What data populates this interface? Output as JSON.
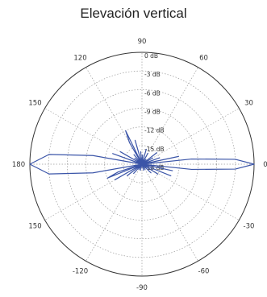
{
  "title": "Elevación vertical",
  "chart_data": {
    "type": "polar-line",
    "title": "Elevación vertical",
    "radial_unit": "dB",
    "radial_range": [
      -18,
      0
    ],
    "radial_ticks": [
      "0 dB",
      "-3 dB",
      "-6 dB",
      "-9 dB",
      "-12 dB",
      "-15 dB",
      "-18 dB"
    ],
    "radial_tick_values": [
      0,
      -3,
      -6,
      -9,
      -12,
      -15,
      -18
    ],
    "angle_ticks": [
      {
        "deg": 0,
        "label": "0"
      },
      {
        "deg": 30,
        "label": "30"
      },
      {
        "deg": 60,
        "label": "60"
      },
      {
        "deg": 90,
        "label": "90"
      },
      {
        "deg": 120,
        "label": "120"
      },
      {
        "deg": 150,
        "label": "150"
      },
      {
        "deg": 180,
        "label": "180"
      },
      {
        "deg": 210,
        "label": "150"
      },
      {
        "deg": 240,
        "label": "-120"
      },
      {
        "deg": 270,
        "label": "-90"
      },
      {
        "deg": 300,
        "label": "-60"
      },
      {
        "deg": 330,
        "label": "-30"
      }
    ],
    "grid": true,
    "line_color": "#3b55a8",
    "series": [
      {
        "points": [
          [
            -180,
            0
          ],
          [
            -174,
            -3
          ],
          [
            -170,
            -10
          ],
          [
            -166,
            -18
          ],
          [
            -162,
            -14
          ],
          [
            -158,
            -12
          ],
          [
            -155,
            -18
          ],
          [
            -150,
            -13
          ],
          [
            -146,
            -18
          ],
          [
            -142,
            -15
          ],
          [
            -138,
            -18
          ],
          [
            -132,
            -16
          ],
          [
            -126,
            -18
          ],
          [
            -120,
            -17
          ],
          [
            -112,
            -18
          ],
          [
            -104,
            -17
          ],
          [
            -96,
            -18
          ],
          [
            -90,
            -18
          ],
          [
            -84,
            -18
          ],
          [
            -76,
            -17
          ],
          [
            -68,
            -18
          ],
          [
            -60,
            -17
          ],
          [
            -52,
            -18
          ],
          [
            -44,
            -16
          ],
          [
            -38,
            -18
          ],
          [
            -32,
            -15
          ],
          [
            -26,
            -18
          ],
          [
            -22,
            -13
          ],
          [
            -16,
            -18
          ],
          [
            -12,
            -13
          ],
          [
            -8,
            -18
          ],
          [
            -6,
            -10
          ],
          [
            -3,
            -3
          ],
          [
            0,
            0
          ],
          [
            3,
            -3
          ],
          [
            6,
            -10
          ],
          [
            8,
            -18
          ],
          [
            12,
            -12
          ],
          [
            16,
            -18
          ],
          [
            20,
            -15
          ],
          [
            26,
            -18
          ],
          [
            30,
            -16
          ],
          [
            34,
            -18
          ],
          [
            38,
            -15
          ],
          [
            44,
            -18
          ],
          [
            50,
            -17
          ],
          [
            56,
            -18
          ],
          [
            62,
            -16
          ],
          [
            68,
            -18
          ],
          [
            74,
            -15.5
          ],
          [
            80,
            -18
          ],
          [
            86,
            -16.5
          ],
          [
            90,
            -18
          ],
          [
            96,
            -16
          ],
          [
            100,
            -18
          ],
          [
            106,
            -14
          ],
          [
            110,
            -18
          ],
          [
            116,
            -12
          ],
          [
            120,
            -14
          ],
          [
            124,
            -18
          ],
          [
            130,
            -16
          ],
          [
            134,
            -18
          ],
          [
            140,
            -16.5
          ],
          [
            146,
            -18
          ],
          [
            150,
            -14
          ],
          [
            155,
            -18
          ],
          [
            160,
            -13
          ],
          [
            166,
            -18
          ],
          [
            170,
            -10
          ],
          [
            174,
            -3
          ],
          [
            180,
            0
          ]
        ]
      }
    ]
  }
}
